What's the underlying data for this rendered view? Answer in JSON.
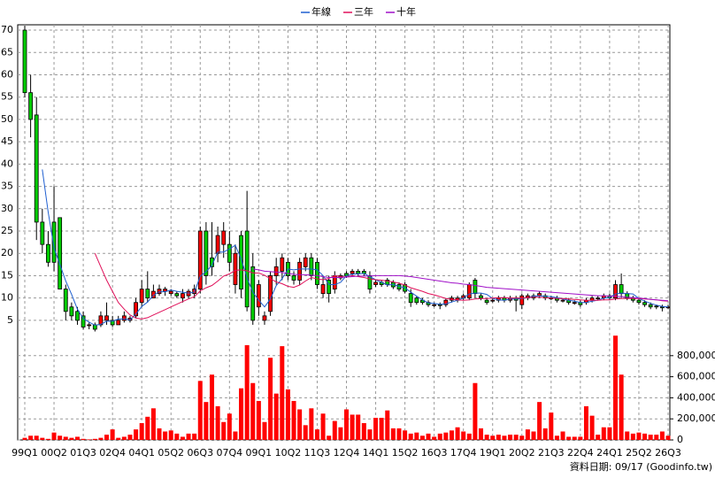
{
  "chart_data": {
    "type": "candlestick",
    "legend": "top",
    "grid": true,
    "annotation": "資料日期: 09/17  (Goodinfo.tw)",
    "up_color": "#ff0000",
    "down_color": "#00cc00",
    "categories": [
      "99Q1",
      null,
      null,
      null,
      null,
      "00Q2",
      null,
      null,
      null,
      null,
      "01Q3",
      null,
      null,
      null,
      null,
      "02Q4",
      null,
      null,
      null,
      null,
      "04Q1",
      null,
      null,
      null,
      null,
      "05Q2",
      null,
      null,
      null,
      null,
      "06Q3",
      null,
      null,
      null,
      null,
      "07Q4",
      null,
      null,
      null,
      null,
      "09Q1",
      null,
      null,
      null,
      null,
      "10Q2",
      null,
      null,
      null,
      null,
      "11Q3",
      null,
      null,
      null,
      null,
      "12Q4",
      null,
      null,
      null,
      null,
      "14Q1",
      null,
      null,
      null,
      null,
      "15Q2",
      null,
      null,
      null,
      null,
      "16Q3",
      null,
      null,
      null,
      null,
      "17Q4",
      null,
      null,
      null,
      null,
      "19Q1",
      null,
      null,
      null,
      null,
      "20Q2",
      null,
      null,
      null,
      null,
      "21Q3",
      null,
      null,
      null,
      null,
      "22Q4",
      null,
      null,
      null,
      null,
      "24Q1",
      null,
      null,
      null,
      null,
      "25Q2",
      null,
      null,
      null,
      null,
      "26Q3"
    ],
    "open": [
      70,
      56,
      51,
      27,
      22,
      27,
      28,
      12,
      8,
      7,
      6,
      4,
      4,
      4,
      5,
      5,
      4,
      5,
      5,
      6,
      9,
      12,
      10,
      11,
      11.5,
      11,
      11,
      10,
      10.5,
      11,
      12,
      25,
      19,
      20,
      22,
      22,
      13,
      24,
      25,
      17,
      8,
      5,
      7,
      15,
      16,
      18,
      15,
      14,
      17,
      19,
      18,
      11,
      14,
      12,
      14.5,
      15.5,
      15.5,
      16,
      16,
      15,
      13,
      13.5,
      14,
      13.5,
      13,
      13,
      11,
      10,
      9.5,
      9,
      8.5,
      8.5,
      8.5,
      9.5,
      9.5,
      10,
      10,
      14,
      10.5,
      9.5,
      9.5,
      9.5,
      10,
      9.5,
      10,
      8.5,
      10,
      10.5,
      10.5,
      10.5,
      10,
      10,
      9.5,
      9.5,
      9,
      9,
      9,
      9.5,
      10,
      10,
      10.5,
      10,
      13,
      11,
      10,
      9.5,
      9,
      8.5,
      8.2,
      8,
      8
    ],
    "high": [
      71,
      60,
      55,
      30,
      25,
      35,
      28,
      13,
      9,
      8,
      7,
      4.5,
      4.5,
      7,
      9,
      6,
      6,
      7,
      6,
      10,
      14,
      16,
      13,
      13,
      12.5,
      12,
      11.5,
      12,
      12,
      13,
      26,
      27,
      27,
      26,
      27,
      25,
      22,
      25,
      34,
      20,
      14,
      7,
      16,
      19,
      20,
      19,
      16,
      19,
      20,
      20,
      19,
      15,
      15,
      16,
      15.5,
      16,
      16.5,
      16.5,
      16.5,
      16,
      14,
      14,
      14.5,
      14,
      13.5,
      13.5,
      12,
      10.5,
      10,
      9.5,
      9,
      9,
      10,
      10.5,
      10.5,
      11,
      13.5,
      14.5,
      11,
      10,
      10,
      10.5,
      10.5,
      10.5,
      10.5,
      11,
      11,
      11,
      11.5,
      11,
      10.5,
      10.5,
      10,
      10,
      9.5,
      9.5,
      10,
      10.5,
      10.5,
      11,
      11,
      14,
      15.5,
      11.5,
      10.5,
      10,
      9.5,
      9,
      8.5,
      8.5,
      8.5
    ],
    "low": [
      55,
      46,
      23,
      20,
      17,
      16,
      12,
      5,
      5,
      4,
      3,
      3,
      2.5,
      3.5,
      4,
      3.5,
      4,
      4.5,
      4.5,
      5.5,
      8,
      9,
      10,
      10.5,
      10.5,
      10.5,
      10,
      9,
      10,
      10,
      11,
      13,
      15,
      18,
      19,
      16,
      11,
      10,
      7,
      4,
      6,
      4,
      6,
      13,
      14,
      14,
      13,
      13,
      16,
      14,
      12,
      10,
      9,
      11,
      14,
      14.5,
      15,
      15,
      15,
      11,
      12.5,
      12.5,
      12.5,
      12,
      11.5,
      11,
      8,
      8.5,
      8.5,
      8,
      8,
      7.5,
      8,
      9,
      9,
      9.5,
      9.5,
      10,
      9.5,
      8.5,
      9,
      9,
      9,
      9,
      7,
      7.5,
      9.5,
      9.5,
      10,
      9.5,
      9.5,
      9,
      9,
      8.5,
      8.5,
      8,
      8.5,
      9,
      9.5,
      9.5,
      9.5,
      9.5,
      10,
      9.5,
      9,
      8.5,
      8,
      7.5,
      7.5,
      7,
      7.5
    ],
    "close": [
      56,
      50,
      27,
      22,
      18,
      18,
      12,
      7,
      6,
      5,
      3.5,
      4,
      3,
      6,
      6,
      4,
      5,
      6,
      5.5,
      9,
      12,
      10,
      11.5,
      12,
      12,
      11.5,
      10.5,
      11,
      11.5,
      12,
      25,
      15,
      17,
      24,
      25,
      18,
      20,
      12,
      8,
      5,
      13,
      6,
      15,
      17,
      19,
      15,
      14,
      18,
      19,
      15,
      13,
      13,
      11,
      15,
      15,
      15,
      16,
      15.5,
      15.5,
      12,
      13.5,
      13,
      13,
      12.5,
      12,
      11.5,
      9,
      9,
      9,
      8.5,
      8.5,
      8.3,
      9.5,
      10,
      10,
      10.5,
      13,
      11,
      10,
      9,
      9.5,
      10,
      9.5,
      10,
      9.5,
      10.5,
      10.5,
      10,
      11,
      10,
      10,
      9.5,
      9.5,
      9,
      9,
      8.5,
      9.5,
      10,
      10,
      10.5,
      10,
      13,
      11,
      10,
      9.5,
      9,
      8.5,
      8,
      8,
      7.8,
      8
    ],
    "ylim": [
      2.2,
      71.2
    ],
    "yticks": [
      5,
      10,
      15,
      20,
      25,
      30,
      35,
      40,
      45,
      50,
      55,
      60,
      65,
      70
    ],
    "series": [
      {
        "name": "年線",
        "color": "#1f5fd0",
        "values": [
          null,
          null,
          null,
          38.8,
          29.3,
          21.3,
          17.5,
          13.8,
          10.8,
          7.5,
          5.4,
          4.6,
          3.9,
          4.1,
          4.8,
          4.8,
          5.3,
          5.3,
          5.1,
          6.4,
          8.1,
          9.1,
          10.6,
          11.4,
          11.4,
          11.8,
          11.5,
          11.3,
          11.1,
          11.3,
          14.9,
          15.9,
          17.3,
          20.3,
          20.3,
          21,
          21.8,
          18.8,
          14.5,
          11.3,
          9.5,
          8,
          9.8,
          12.8,
          14.3,
          16.5,
          16.3,
          16.5,
          16.5,
          16.5,
          16.3,
          15,
          13,
          13,
          13.5,
          15,
          15.3,
          15.4,
          15.5,
          14.8,
          14.1,
          13.5,
          12.9,
          13,
          12.6,
          12.3,
          11.3,
          10.4,
          9.6,
          8.9,
          8.8,
          8.6,
          8.7,
          9.1,
          9.5,
          10,
          10.9,
          11.1,
          11.1,
          10.8,
          9.9,
          9.6,
          9.5,
          9.8,
          9.8,
          9.9,
          10.1,
          10.4,
          10.5,
          10.4,
          10.3,
          10.1,
          9.8,
          9.5,
          9.3,
          9,
          9,
          9.3,
          9.5,
          10,
          10.1,
          10.9,
          11.1,
          11,
          10.9,
          9.9,
          9.3,
          8.8,
          8.4,
          8.1,
          8
        ]
      },
      {
        "name": "三年",
        "color": "#e0105a",
        "values": [
          null,
          null,
          null,
          null,
          null,
          null,
          null,
          null,
          null,
          null,
          null,
          null,
          20,
          17,
          14,
          11.5,
          9,
          7.5,
          6.2,
          5.5,
          5.3,
          5.6,
          6.2,
          6.8,
          7.4,
          8,
          8.6,
          9.2,
          9.8,
          10.3,
          11.6,
          12.3,
          12.8,
          13.8,
          14.9,
          15.4,
          16.2,
          16.3,
          16.1,
          15.6,
          15.6,
          15.1,
          14.3,
          13.6,
          13.2,
          12.6,
          12.4,
          12.9,
          13.8,
          14.6,
          14.3,
          14.1,
          14.4,
          15,
          14.8,
          14.7,
          15,
          14.8,
          14.6,
          14.3,
          14.1,
          14,
          13.8,
          13.6,
          13.3,
          12.9,
          12.3,
          11.9,
          11.5,
          11,
          10.7,
          10.3,
          9.9,
          9.7,
          9.6,
          9.5,
          9.6,
          9.8,
          9.9,
          9.9,
          10,
          10.1,
          10.1,
          10,
          10,
          10,
          10.1,
          10.2,
          10.2,
          10.1,
          10,
          9.9,
          9.9,
          9.8,
          9.7,
          9.6,
          9.5,
          9.5,
          9.5,
          9.6,
          9.6,
          9.8,
          9.9,
          9.9,
          9.9,
          9.9,
          9.8,
          9.7,
          9.6,
          9.4,
          9.3
        ]
      },
      {
        "name": "十年",
        "color": "#a010c8",
        "values": [
          null,
          null,
          null,
          null,
          null,
          null,
          null,
          null,
          null,
          null,
          null,
          null,
          null,
          null,
          null,
          null,
          null,
          null,
          null,
          null,
          null,
          null,
          null,
          null,
          null,
          null,
          null,
          null,
          null,
          null,
          null,
          null,
          null,
          null,
          null,
          null,
          null,
          null,
          null,
          16.5,
          16.3,
          16,
          15.9,
          15.8,
          15.7,
          15.5,
          15.3,
          15.2,
          15.2,
          15.1,
          15,
          14.8,
          14.6,
          14.6,
          14.6,
          14.7,
          14.8,
          14.9,
          14.9,
          14.9,
          15,
          15,
          15,
          15,
          15,
          14.9,
          14.8,
          14.6,
          14.4,
          14.2,
          14,
          13.8,
          13.6,
          13.4,
          13.3,
          13.1,
          13,
          12.8,
          12.6,
          12.4,
          12.3,
          12.2,
          12.1,
          12,
          11.9,
          11.8,
          11.7,
          11.6,
          11.5,
          11.4,
          11.3,
          11.2,
          11.1,
          11,
          10.9,
          10.8,
          10.7,
          10.6,
          10.5,
          10.5,
          10.4,
          10.4,
          10.3,
          10.2,
          10.1,
          10,
          9.9,
          9.7,
          9.6,
          9.5,
          9.4
        ]
      }
    ],
    "volume": {
      "axis": "y2",
      "color": "#ff0000",
      "values": [
        20000,
        40000,
        40000,
        20000,
        10000,
        70000,
        40000,
        30000,
        20000,
        30000,
        10000,
        5000,
        10000,
        20000,
        50000,
        100000,
        20000,
        30000,
        50000,
        100000,
        160000,
        220000,
        300000,
        110000,
        80000,
        90000,
        60000,
        30000,
        60000,
        60000,
        560000,
        360000,
        620000,
        320000,
        170000,
        250000,
        80000,
        490000,
        900000,
        540000,
        370000,
        170000,
        780000,
        440000,
        890000,
        480000,
        370000,
        290000,
        140000,
        300000,
        100000,
        250000,
        40000,
        180000,
        120000,
        290000,
        240000,
        240000,
        160000,
        100000,
        210000,
        210000,
        280000,
        110000,
        110000,
        90000,
        60000,
        70000,
        40000,
        60000,
        30000,
        60000,
        70000,
        90000,
        120000,
        80000,
        60000,
        540000,
        110000,
        50000,
        40000,
        50000,
        40000,
        50000,
        50000,
        40000,
        100000,
        80000,
        360000,
        110000,
        260000,
        40000,
        80000,
        30000,
        30000,
        30000,
        320000,
        230000,
        50000,
        120000,
        120000,
        990000,
        620000,
        80000,
        60000,
        70000,
        60000,
        50000,
        50000,
        80000,
        40000
      ]
    },
    "y2lim": [
      0,
      1000000
    ],
    "y2ticks": [
      0,
      {
        "value": 200000,
        "label": "200,000"
      },
      {
        "value": 400000,
        "label": "400,000"
      },
      {
        "value": 600000,
        "label": "600,000"
      },
      {
        "value": 800000,
        "label": "800,000"
      }
    ]
  }
}
